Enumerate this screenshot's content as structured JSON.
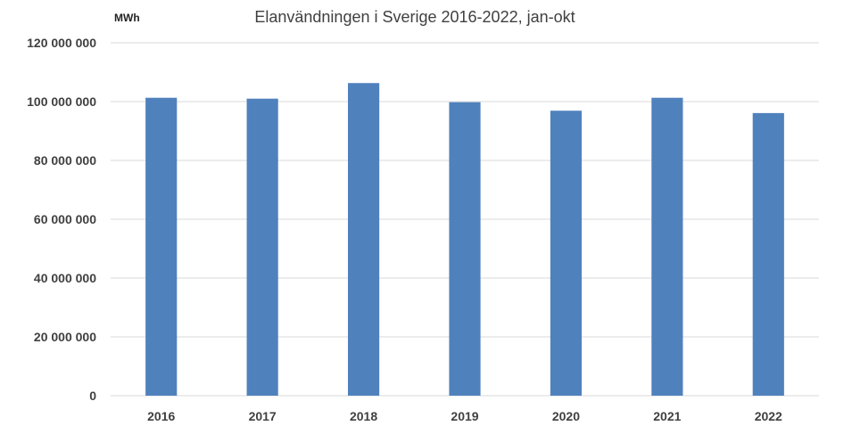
{
  "chart_data": {
    "type": "bar",
    "title": "Elanvändningen i Sverige 2016-2022, jan-okt",
    "ylabel": "MWh",
    "xlabel": "",
    "categories": [
      "2016",
      "2017",
      "2018",
      "2019",
      "2020",
      "2021",
      "2022"
    ],
    "values": [
      101300000,
      101000000,
      106300000,
      99800000,
      96900000,
      101300000,
      96100000
    ],
    "ylim": [
      0,
      120000000
    ],
    "yticks": [
      0,
      20000000,
      40000000,
      60000000,
      80000000,
      100000000,
      120000000
    ],
    "ytick_labels": [
      "0",
      "20 000 000",
      "40 000 000",
      "60 000 000",
      "80 000 000",
      "100 000 000",
      "120 000 000"
    ],
    "grid": true,
    "legend": "none",
    "colors": {
      "bar": "#4f81bd",
      "grid": "#d9d9d9",
      "text": "#404040"
    }
  }
}
